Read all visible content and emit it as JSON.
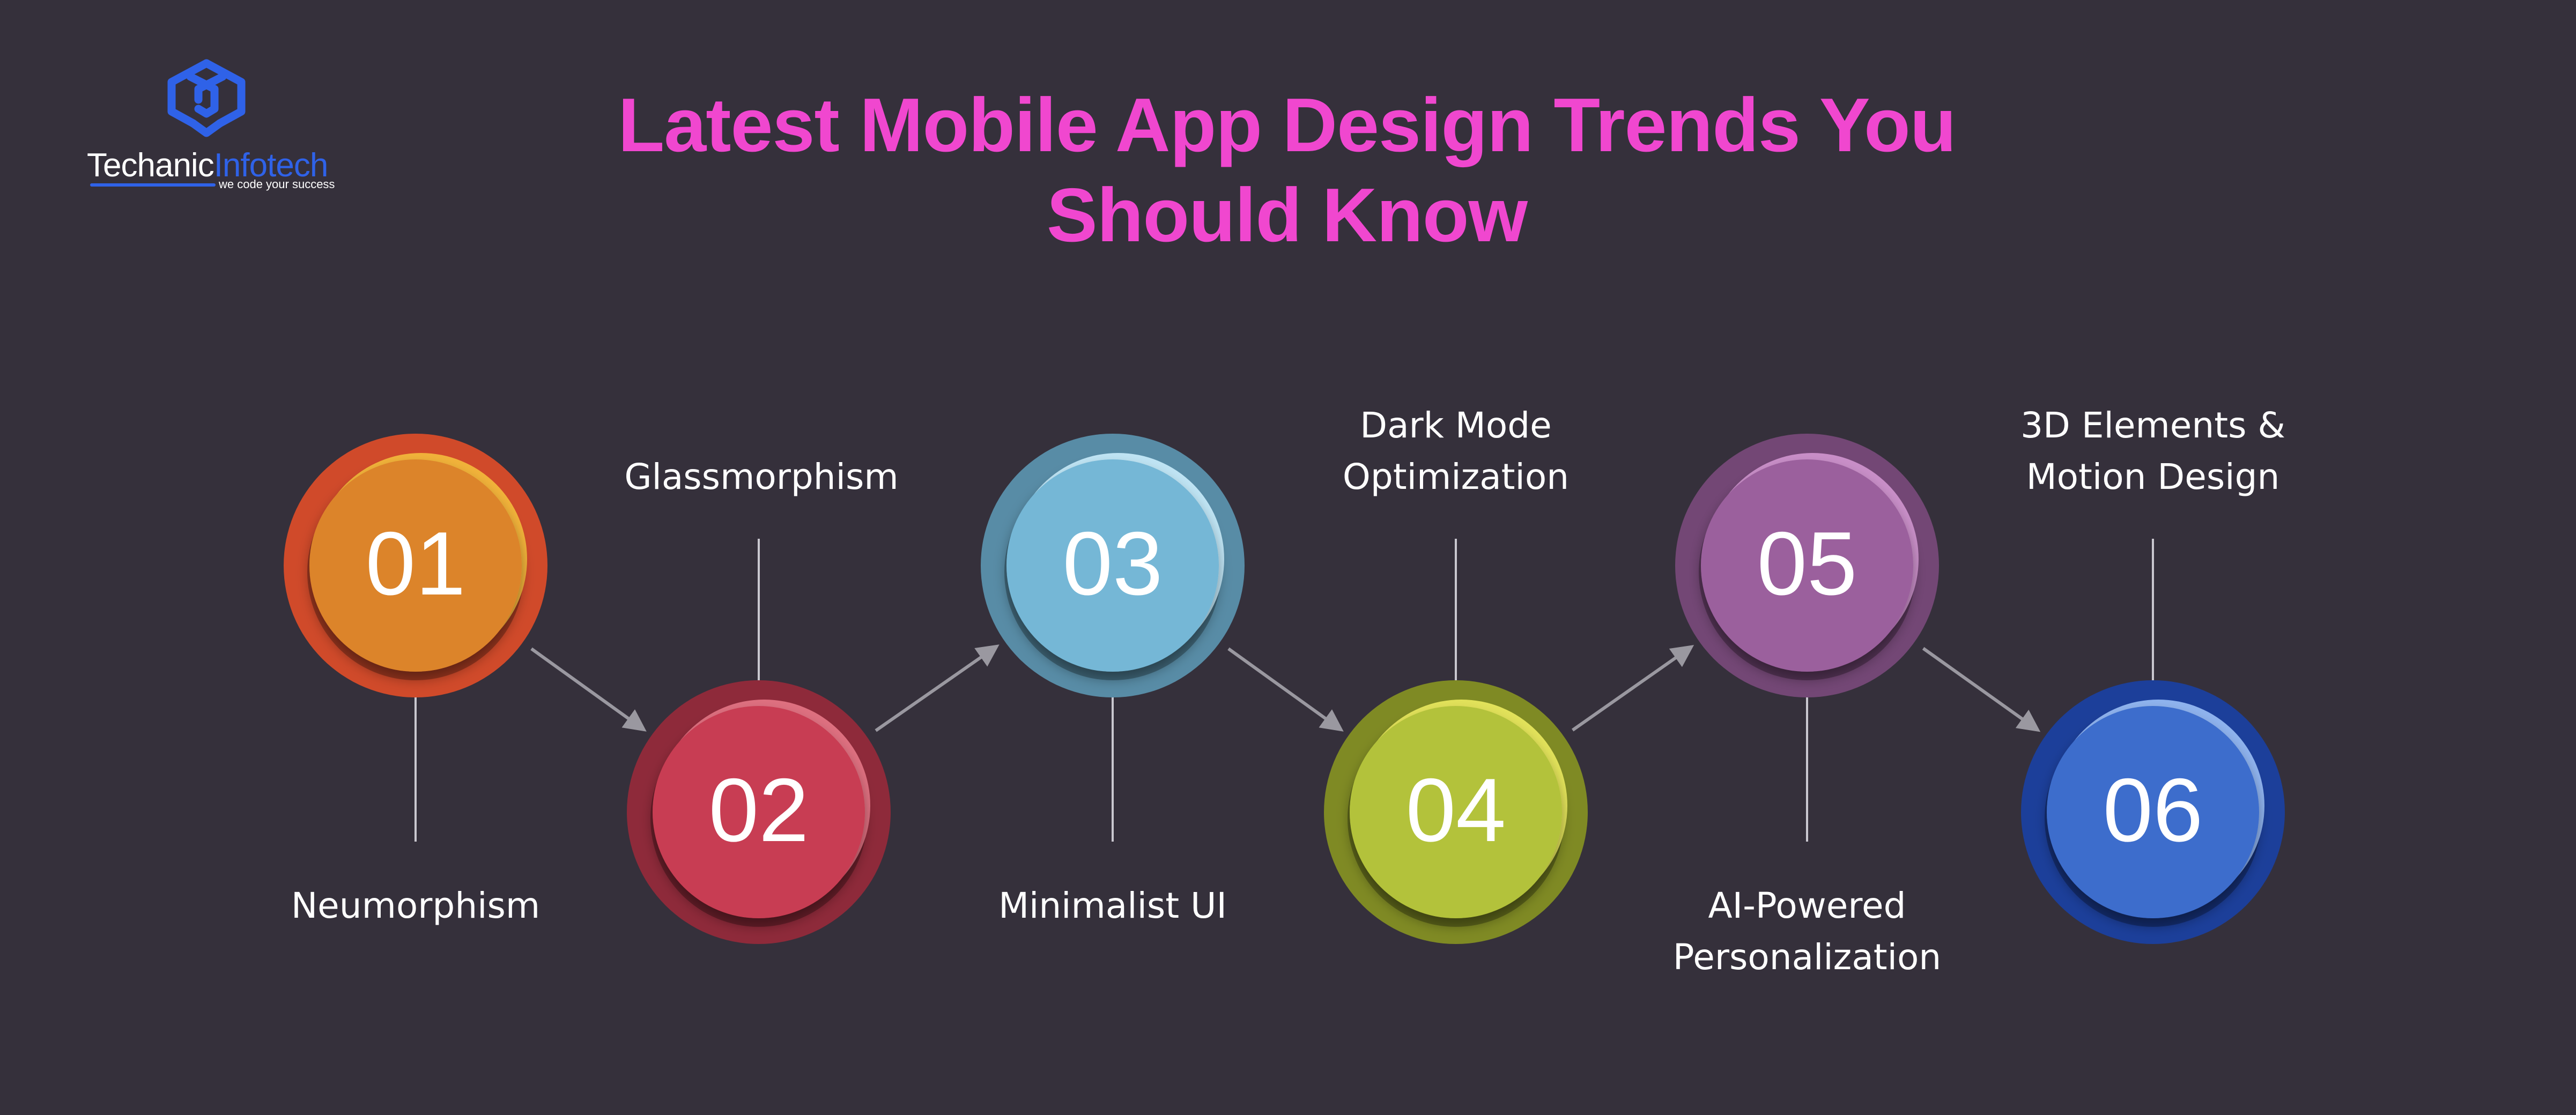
{
  "brand": {
    "name_part1": "Techanic",
    "name_part2": "Infotech",
    "tagline": "we code your success",
    "logo_icon": "interlocking-cube-icon",
    "color": "#2f62e8"
  },
  "title": {
    "line1": "Latest Mobile App Design Trends You",
    "line2": "Should Know",
    "color": "#f047cf"
  },
  "background_color": "#35303b",
  "steps": [
    {
      "number": "01",
      "label": [
        "Neumorphism"
      ],
      "outer_color": "#d04a2a",
      "inner_color": "#dc842b",
      "highlight_color": "#f1b23a",
      "label_side": "below"
    },
    {
      "number": "02",
      "label": [
        "Glassmorphism"
      ],
      "outer_color": "#8e2a3a",
      "inner_color": "#c83c52",
      "highlight_color": "#de7080",
      "label_side": "above"
    },
    {
      "number": "03",
      "label": [
        "Minimalist UI"
      ],
      "outer_color": "#588ca6",
      "inner_color": "#74b7d6",
      "highlight_color": "#bfe4f4",
      "label_side": "below"
    },
    {
      "number": "04",
      "label": [
        "Dark Mode",
        "Optimization"
      ],
      "outer_color": "#7f8a24",
      "inner_color": "#b3c23a",
      "highlight_color": "#e2e25a",
      "label_side": "above"
    },
    {
      "number": "05",
      "label": [
        "AI-Powered",
        "Personalization"
      ],
      "outer_color": "#734775",
      "inner_color": "#9b609d",
      "highlight_color": "#c98fc8",
      "label_side": "below"
    },
    {
      "number": "06",
      "label": [
        "3D Elements &",
        "Motion Design"
      ],
      "outer_color": "#1c3f9a",
      "inner_color": "#3c6dcc",
      "highlight_color": "#8fb3ee",
      "label_side": "above"
    }
  ],
  "connector_color": "#9a98a0",
  "label_color": "#ffffff"
}
